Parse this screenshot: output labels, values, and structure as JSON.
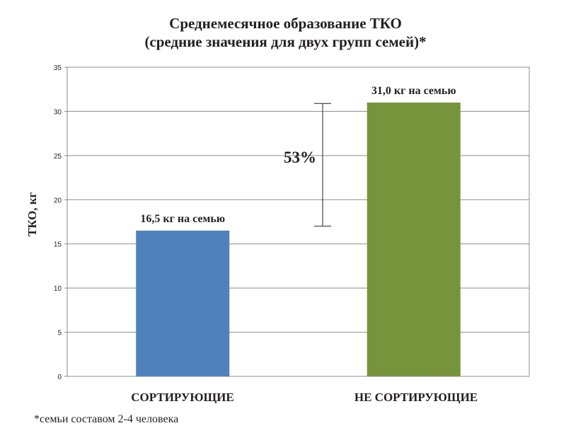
{
  "chart_data": {
    "type": "bar",
    "title": "Среднемесячное образование ТКО",
    "subtitle": "(средние значения для двух групп семей)*",
    "ylabel": "ТКО, кг",
    "xlabel": "",
    "ylim": [
      0,
      35
    ],
    "yticks": [
      0,
      5,
      10,
      15,
      20,
      25,
      30,
      35
    ],
    "grid": true,
    "categories": [
      "СОРТИРУЮЩИЕ",
      "НЕ СОРТИРУЮЩИЕ"
    ],
    "values": [
      16.5,
      31.0
    ],
    "colors": [
      "#4f81bd",
      "#77933c"
    ],
    "data_labels": [
      "16,5 кг на семью",
      "31,0 кг на семью"
    ],
    "annotation": {
      "text": "53%",
      "from": 17.0,
      "to": 30.9
    }
  },
  "footnote": "*семьи составом 2-4 человека"
}
